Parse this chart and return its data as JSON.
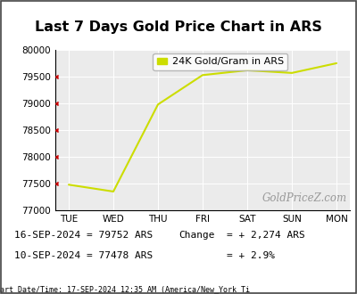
{
  "title": "Last 7 Days Gold Price Chart in ARS",
  "legend_label": "24K Gold/Gram in ARS",
  "x_labels": [
    "TUE",
    "WED",
    "THU",
    "FRI",
    "SAT",
    "SUN",
    "MON"
  ],
  "x_values": [
    0,
    1,
    2,
    3,
    4,
    5,
    6
  ],
  "y_values": [
    77478,
    77350,
    78980,
    79530,
    79620,
    79570,
    79752
  ],
  "line_color": "#ccdd00",
  "ylim": [
    77000,
    80000
  ],
  "yticks": [
    77000,
    77500,
    78000,
    78500,
    79000,
    79500,
    80000
  ],
  "bg_color": "#ffffff",
  "plot_bg_color": "#ebebeb",
  "watermark": "GoldPriceZ.com",
  "info_line1": "16-SEP-2024 = 79752 ARS",
  "info_line2": "10-SEP-2024 = 77478 ARS",
  "change_label": "Change",
  "change_val": "= + 2,274 ARS",
  "change_pct": "= + 2.9%",
  "footer_text": "art Date/Time: 17-SEP-2024 12:35 AM (America/New_York Ti",
  "title_fontsize": 11.5,
  "tick_fontsize": 7.5,
  "info_fontsize": 8.0,
  "watermark_fontsize": 8.5,
  "red_tick_color": "#cc0000"
}
